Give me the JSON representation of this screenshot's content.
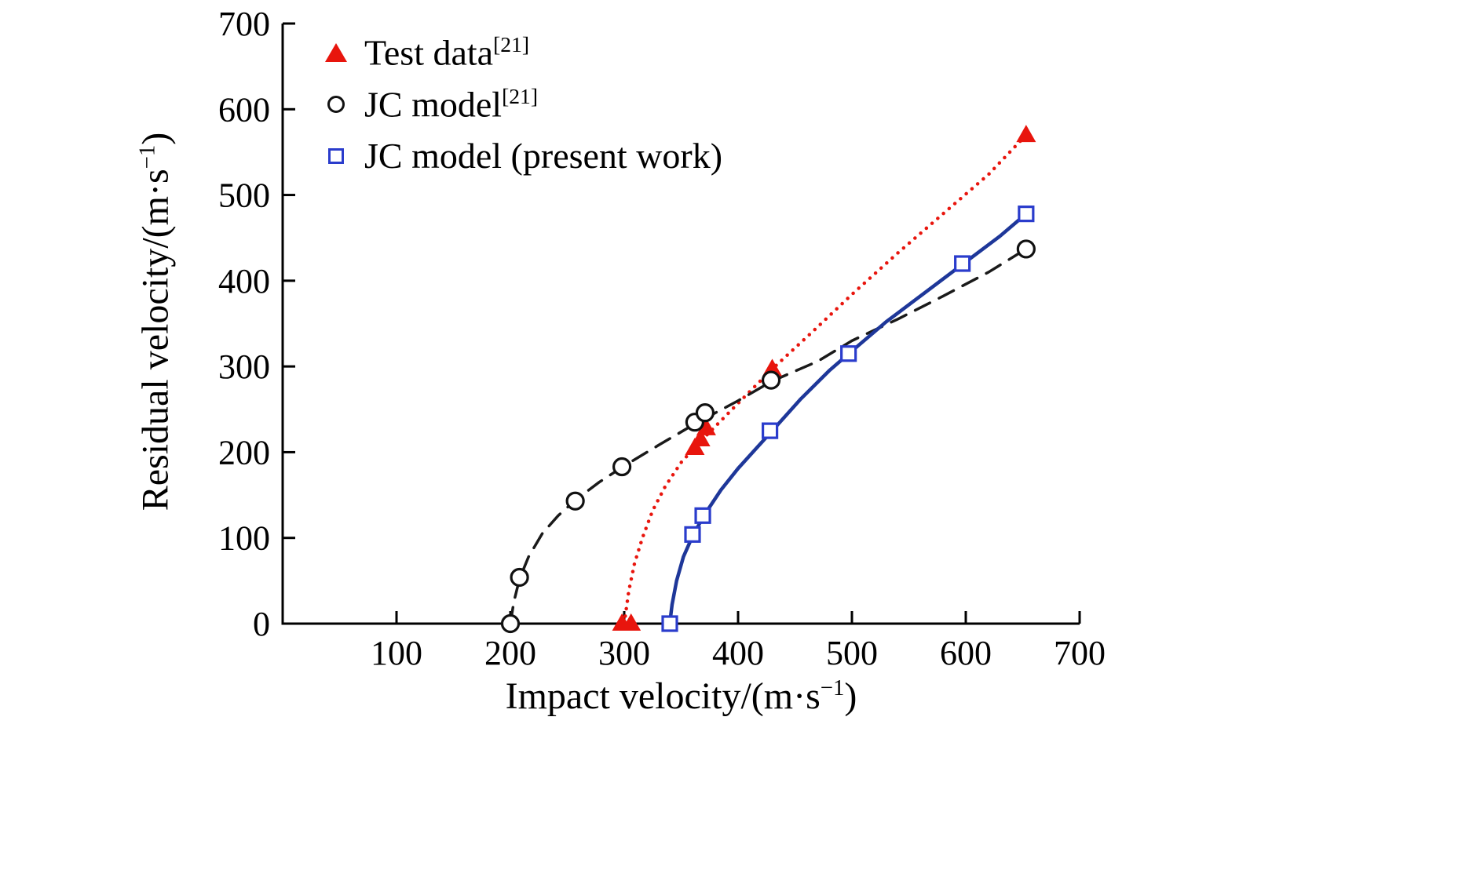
{
  "figure": {
    "background": "#ffffff"
  },
  "chart_data": {
    "type": "scatter",
    "title": "",
    "xlabel": "Impact velocity/(m·s⁻¹)",
    "ylabel": "Residual velocity/(m·s⁻¹)",
    "xlabel_parts": {
      "pre": "Impact velocity/(m·s",
      "sup": "−1",
      "post": ")"
    },
    "ylabel_parts": {
      "pre": "Residual velocity/(m·s",
      "sup": "−1",
      "post": ")"
    },
    "xlim": [
      0,
      700
    ],
    "ylim": [
      0,
      700
    ],
    "xticks": [
      100,
      200,
      300,
      400,
      500,
      600,
      700
    ],
    "yticks": [
      0,
      100,
      200,
      300,
      400,
      500,
      600,
      700
    ],
    "grid": false,
    "legend_position": "top-left",
    "axis_color": "#000000",
    "series": [
      {
        "name": "Test data",
        "name_sup": "[21]",
        "marker": "triangle",
        "marker_color": "#e8150d",
        "line_color": "#e8150d",
        "line_style": "dotted",
        "points": [
          [
            298,
            0
          ],
          [
            306,
            0
          ],
          [
            362,
            205
          ],
          [
            367,
            215
          ],
          [
            372,
            228
          ],
          [
            430,
            297
          ],
          [
            653,
            570
          ]
        ],
        "curve": [
          [
            300,
            0
          ],
          [
            304,
            38
          ],
          [
            309,
            70
          ],
          [
            316,
            100
          ],
          [
            325,
            132
          ],
          [
            336,
            160
          ],
          [
            350,
            188
          ],
          [
            365,
            210
          ],
          [
            380,
            230
          ],
          [
            400,
            257
          ],
          [
            430,
            297
          ],
          [
            465,
            340
          ],
          [
            500,
            384
          ],
          [
            540,
            432
          ],
          [
            580,
            478
          ],
          [
            620,
            524
          ],
          [
            653,
            570
          ]
        ]
      },
      {
        "name": "JC model",
        "name_sup": "[21]",
        "marker": "circle",
        "marker_color": "#111111",
        "line_color": "#1a1a1a",
        "line_style": "dashed",
        "points": [
          [
            200,
            0
          ],
          [
            208,
            54
          ],
          [
            257,
            143
          ],
          [
            298,
            183
          ],
          [
            362,
            235
          ],
          [
            371,
            246
          ],
          [
            429,
            284
          ],
          [
            653,
            437
          ]
        ],
        "curve": [
          [
            200,
            0
          ],
          [
            203,
            25
          ],
          [
            208,
            52
          ],
          [
            216,
            78
          ],
          [
            228,
            105
          ],
          [
            242,
            126
          ],
          [
            258,
            145
          ],
          [
            278,
            165
          ],
          [
            300,
            184
          ],
          [
            330,
            208
          ],
          [
            362,
            233
          ],
          [
            400,
            260
          ],
          [
            430,
            283
          ],
          [
            470,
            306
          ],
          [
            500,
            330
          ],
          [
            540,
            355
          ],
          [
            580,
            382
          ],
          [
            620,
            410
          ],
          [
            653,
            437
          ]
        ]
      },
      {
        "name": "JC model (present work)",
        "name_sup": "",
        "marker": "square",
        "marker_color": "#2a3ccc",
        "line_color": "#1e3799",
        "line_style": "solid",
        "points": [
          [
            340,
            0
          ],
          [
            360,
            104
          ],
          [
            369,
            126
          ],
          [
            428,
            225
          ],
          [
            497,
            315
          ],
          [
            597,
            420
          ],
          [
            653,
            478
          ]
        ],
        "curve": [
          [
            340,
            0
          ],
          [
            342,
            22
          ],
          [
            346,
            50
          ],
          [
            352,
            78
          ],
          [
            360,
            102
          ],
          [
            370,
            126
          ],
          [
            385,
            156
          ],
          [
            400,
            181
          ],
          [
            415,
            203
          ],
          [
            430,
            225
          ],
          [
            455,
            262
          ],
          [
            480,
            295
          ],
          [
            500,
            318
          ],
          [
            530,
            352
          ],
          [
            560,
            382
          ],
          [
            600,
            422
          ],
          [
            630,
            452
          ],
          [
            653,
            478
          ]
        ]
      }
    ]
  }
}
